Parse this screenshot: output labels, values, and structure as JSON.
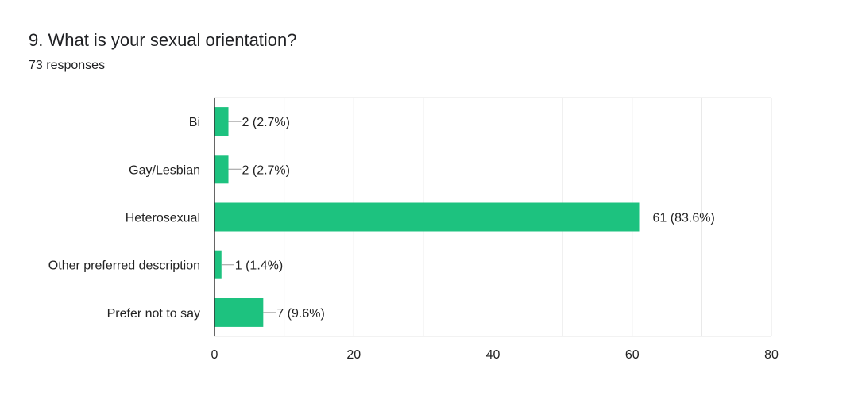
{
  "question": {
    "title": "9. What is your sexual orientation?",
    "responses": "73 responses"
  },
  "chart_data": {
    "type": "bar",
    "orientation": "horizontal",
    "categories": [
      "Bi",
      "Gay/Lesbian",
      "Heterosexual",
      "Other preferred description",
      "Prefer not to say"
    ],
    "values": [
      2,
      2,
      61,
      1,
      7
    ],
    "data_labels": [
      "2 (2.7%)",
      "2 (2.7%)",
      "61 (83.6%)",
      "1 (1.4%)",
      "7 (9.6%)"
    ],
    "x_ticks": [
      0,
      20,
      40,
      60,
      80
    ],
    "xlim": [
      0,
      80
    ],
    "grid": true,
    "bar_color": "#1dc27f"
  }
}
